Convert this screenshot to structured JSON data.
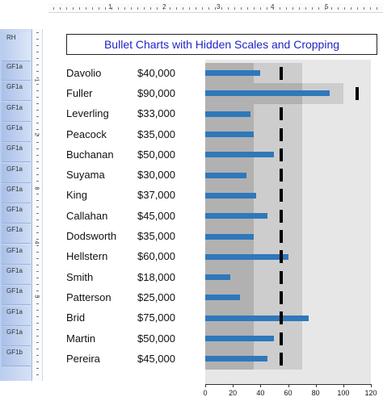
{
  "ruler": {
    "numbers": [
      "1",
      "2",
      "3",
      "4",
      "5"
    ]
  },
  "bands": [
    "RH",
    "GF1a",
    "GF1a",
    "GF1a",
    "GF1a",
    "GF1a",
    "GF1a",
    "GF1a",
    "GF1a",
    "GF1a",
    "GF1a",
    "GF1a",
    "GF1a",
    "GF1a",
    "GF1a",
    "GF1b"
  ],
  "vruler_numbers": [
    "1",
    "2",
    "3",
    "4",
    "5"
  ],
  "title": "Bullet Charts with Hidden Scales and Cropping",
  "colors": {
    "bar": "#2f78bb",
    "zone_dark": "#b1b1b1",
    "zone_mid": "#cdcdcd",
    "zone_light": "#e7e7e7",
    "target": "#000000",
    "title": "#1f25c4"
  },
  "chart_data": {
    "type": "bar",
    "categories": [
      "Davolio",
      "Fuller",
      "Leverling",
      "Peacock",
      "Buchanan",
      "Suyama",
      "King",
      "Callahan",
      "Dodsworth",
      "Hellstern",
      "Smith",
      "Patterson",
      "Brid",
      "Martin",
      "Pereira"
    ],
    "amounts": [
      "$40,000",
      "$90,000",
      "$33,000",
      "$35,000",
      "$50,000",
      "$30,000",
      "$37,000",
      "$45,000",
      "$35,000",
      "$60,000",
      "$18,000",
      "$25,000",
      "$75,000",
      "$50,000",
      "$45,000"
    ],
    "values": [
      40,
      90,
      33,
      35,
      50,
      30,
      37,
      45,
      35,
      60,
      18,
      25,
      75,
      50,
      45
    ],
    "targets": [
      55,
      110,
      55,
      55,
      55,
      55,
      55,
      55,
      55,
      55,
      55,
      55,
      55,
      55,
      55
    ],
    "ranges": [
      [
        35,
        70,
        120
      ],
      [
        70,
        100,
        120
      ],
      [
        35,
        70,
        120
      ],
      [
        35,
        70,
        120
      ],
      [
        35,
        70,
        120
      ],
      [
        35,
        70,
        120
      ],
      [
        35,
        70,
        120
      ],
      [
        35,
        70,
        120
      ],
      [
        35,
        70,
        120
      ],
      [
        35,
        70,
        120
      ],
      [
        35,
        70,
        120
      ],
      [
        35,
        70,
        120
      ],
      [
        35,
        70,
        120
      ],
      [
        35,
        70,
        120
      ],
      [
        35,
        70,
        120
      ]
    ],
    "xticks": [
      "0",
      "20",
      "40",
      "60",
      "80",
      "100",
      "120"
    ],
    "xlim": [
      0,
      120
    ]
  }
}
